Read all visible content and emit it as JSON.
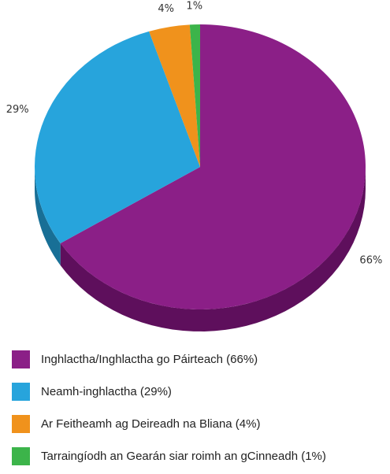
{
  "chart_data": {
    "type": "pie",
    "categories": [
      "Inghlactha/Inghlactha go Páirteach (66%)",
      "Neamh-inghlactha (29%)",
      "Ar Feitheamh ag Deireadh na Bliana (4%)",
      "Tarraingíodh an Gearán siar roimh an gCinneadh (1%)"
    ],
    "values": [
      66,
      29,
      4,
      1
    ],
    "value_labels": [
      "66%",
      "29%",
      "4%",
      "1%"
    ],
    "colors": [
      "#8b1f87",
      "#27a4dc",
      "#f0921c",
      "#3cb44a"
    ],
    "side_colors": [
      "#5e0f5c",
      "#186f96",
      "#a8630f",
      "#267a30"
    ],
    "legend": "bottom"
  }
}
